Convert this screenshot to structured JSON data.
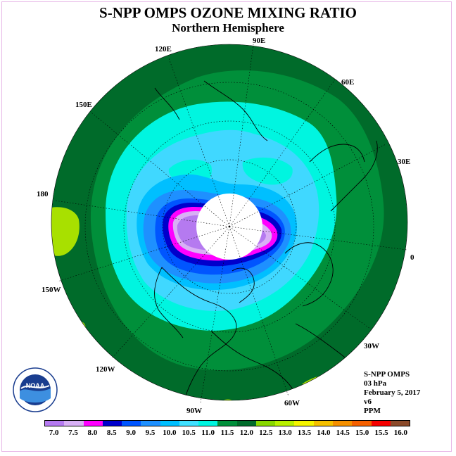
{
  "title": "S-NPP OMPS OZONE MIXING RATIO",
  "subtitle": "Northern Hemisphere",
  "longitude_labels": [
    "90E",
    "60E",
    "30E",
    "0",
    "30W",
    "60W",
    "90W",
    "120W",
    "150W",
    "180",
    "150E",
    "120E"
  ],
  "info": {
    "instrument": "S-NPP OMPS",
    "pressure": "03 hPa",
    "date": "February 5, 2017",
    "version": "v6",
    "units": "PPM"
  },
  "colorbar": {
    "ticks": [
      "7.0",
      "7.5",
      "8.0",
      "8.5",
      "9.0",
      "9.5",
      "10.0",
      "10.5",
      "11.0",
      "11.5",
      "12.0",
      "12.5",
      "13.0",
      "13.5",
      "14.0",
      "14.5",
      "15.0",
      "15.5",
      "16.0"
    ],
    "colors": [
      "#b57af0",
      "#d8b0f5",
      "#ff00ff",
      "#0000cc",
      "#0055ff",
      "#1e90ff",
      "#00bfff",
      "#40e0ff",
      "#00f5e0",
      "#008f3a",
      "#006b2a",
      "#88d800",
      "#b8f000",
      "#f5f500",
      "#f5c000",
      "#f59000",
      "#f56000",
      "#f50000",
      "#8b4a2a"
    ]
  },
  "logo_text": "NOAA"
}
